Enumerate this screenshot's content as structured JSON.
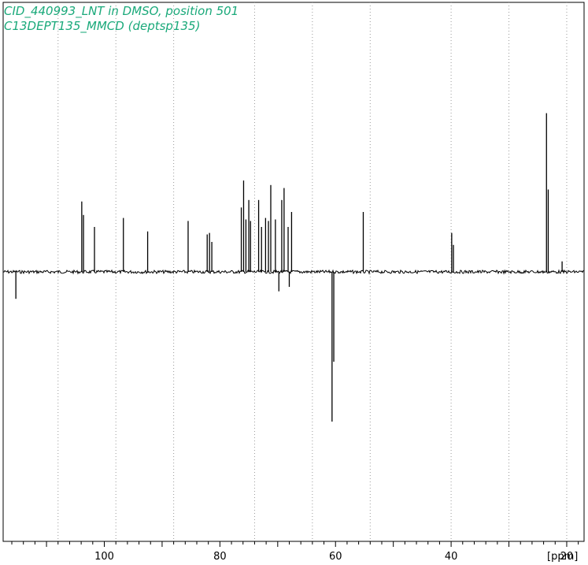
{
  "title_lines": [
    "CID_440993_LNT in DMSO, position 501",
    "C13DEPT135_MMCD (deptsp135)"
  ],
  "colors": {
    "title": "#1aa97a",
    "spectrum": "#000000",
    "frame": "#000000",
    "grid": "#999999",
    "background": "#ffffff"
  },
  "chart_data": {
    "type": "line",
    "title": "CID_440993_LNT in DMSO, position 501",
    "subtitle": "C13DEPT135_MMCD (deptsp135)",
    "xlabel": "[ppm]",
    "ylabel": "",
    "xlim": [
      117.5,
      17.0
    ],
    "x_reversed": true,
    "ylim": [
      -1.7,
      1.0
    ],
    "grid": "vertical-dotted",
    "major_ticks": [
      100,
      80,
      60,
      40,
      20
    ],
    "tick_labels": [
      "100",
      "80",
      "60",
      "40",
      "20"
    ],
    "minor_tick_step": 2,
    "gridlines_x": [
      108,
      98,
      88,
      74,
      64,
      54,
      40,
      30,
      20
    ],
    "series": [
      {
        "values": [
          {
            "ppm": 115.3,
            "intensity": -0.18
          },
          {
            "ppm": 103.9,
            "intensity": 0.47
          },
          {
            "ppm": 103.6,
            "intensity": 0.38
          },
          {
            "ppm": 101.7,
            "intensity": 0.3
          },
          {
            "ppm": 96.7,
            "intensity": 0.36
          },
          {
            "ppm": 92.5,
            "intensity": 0.27
          },
          {
            "ppm": 85.5,
            "intensity": 0.34
          },
          {
            "ppm": 82.2,
            "intensity": 0.25
          },
          {
            "ppm": 81.8,
            "intensity": 0.26
          },
          {
            "ppm": 81.4,
            "intensity": 0.2
          },
          {
            "ppm": 76.3,
            "intensity": 0.43
          },
          {
            "ppm": 75.9,
            "intensity": 0.61
          },
          {
            "ppm": 75.5,
            "intensity": 0.35
          },
          {
            "ppm": 75.0,
            "intensity": 0.48
          },
          {
            "ppm": 74.7,
            "intensity": 0.34
          },
          {
            "ppm": 73.3,
            "intensity": 0.48
          },
          {
            "ppm": 72.8,
            "intensity": 0.3
          },
          {
            "ppm": 72.1,
            "intensity": 0.36
          },
          {
            "ppm": 71.6,
            "intensity": 0.34
          },
          {
            "ppm": 71.2,
            "intensity": 0.58
          },
          {
            "ppm": 70.4,
            "intensity": 0.35
          },
          {
            "ppm": 69.8,
            "intensity": -0.13
          },
          {
            "ppm": 69.3,
            "intensity": 0.48
          },
          {
            "ppm": 68.9,
            "intensity": 0.56
          },
          {
            "ppm": 68.2,
            "intensity": 0.3
          },
          {
            "ppm": 68.0,
            "intensity": -0.1
          },
          {
            "ppm": 67.6,
            "intensity": 0.4
          },
          {
            "ppm": 60.6,
            "intensity": -1.0
          },
          {
            "ppm": 60.3,
            "intensity": -0.6
          },
          {
            "ppm": 55.2,
            "intensity": 0.4
          },
          {
            "ppm": 39.9,
            "intensity": 0.26
          },
          {
            "ppm": 39.6,
            "intensity": 0.18
          },
          {
            "ppm": 23.5,
            "intensity": 1.06
          },
          {
            "ppm": 23.2,
            "intensity": 0.55
          },
          {
            "ppm": 20.8,
            "intensity": 0.07
          }
        ]
      }
    ]
  }
}
